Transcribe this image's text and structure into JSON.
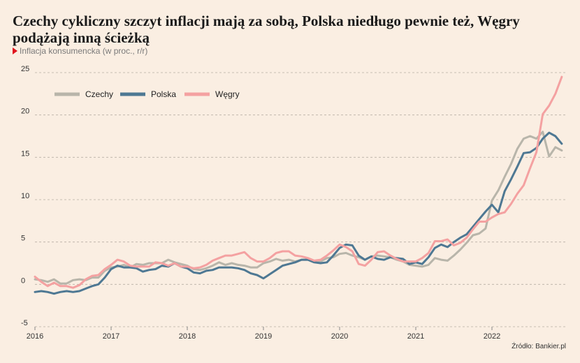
{
  "header": {
    "title": "Czechy cykliczny szczyt inflacji mają za sobą, Polska niedługo pewnie też, Węgry podążają inną ścieżką",
    "subtitle": "Inflacja konsumencka (w proc., r/r)"
  },
  "footer": {
    "source": "Źródło: Bankier.pl"
  },
  "chart_data": {
    "type": "line",
    "title": "Czechy cykliczny szczyt inflacji mają za sobą, Polska niedługo pewnie też, Węgry podążają inną ścieżką",
    "subtitle": "Inflacja konsumencka (w proc., r/r)",
    "xlabel": "",
    "ylabel": "",
    "ylim": [
      -5,
      25
    ],
    "yticks": [
      "-5",
      "0",
      "5",
      "10",
      "15",
      "20",
      "25"
    ],
    "xticks": [
      "2016",
      "2017",
      "2018",
      "2019",
      "2020",
      "2021",
      "2022"
    ],
    "grid": "horizontal dashed",
    "legend_position": "top-left",
    "series": [
      {
        "name": "Czechy",
        "color": "#b8b5aa",
        "values": [
          0.6,
          0.5,
          0.3,
          0.6,
          0.1,
          0.1,
          0.5,
          0.6,
          0.5,
          0.8,
          0.8,
          1.6,
          2.0,
          2.1,
          2.3,
          2.0,
          2.4,
          2.3,
          2.5,
          2.5,
          2.5,
          2.9,
          2.6,
          2.4,
          2.2,
          1.8,
          1.7,
          1.9,
          2.2,
          2.6,
          2.3,
          2.5,
          2.3,
          2.2,
          2.0,
          2.0,
          2.5,
          2.7,
          3.0,
          2.8,
          2.9,
          2.7,
          2.9,
          2.9,
          2.7,
          2.7,
          3.1,
          3.2,
          3.6,
          3.7,
          3.4,
          3.2,
          2.9,
          3.3,
          3.4,
          3.3,
          3.2,
          2.9,
          2.7,
          2.3,
          2.2,
          2.1,
          2.3,
          3.1,
          2.9,
          2.8,
          3.4,
          4.1,
          4.9,
          5.8,
          6.0,
          6.6,
          9.9,
          11.1,
          12.7,
          14.2,
          16.0,
          17.2,
          17.5,
          17.2,
          18.0,
          15.1,
          16.2,
          15.8
        ]
      },
      {
        "name": "Polska",
        "color": "#4e7893",
        "values": [
          -0.9,
          -0.8,
          -0.9,
          -1.1,
          -0.9,
          -0.8,
          -0.9,
          -0.8,
          -0.5,
          -0.2,
          0.0,
          0.8,
          1.8,
          2.2,
          2.0,
          2.0,
          1.9,
          1.5,
          1.7,
          1.8,
          2.2,
          2.1,
          2.5,
          2.1,
          1.9,
          1.4,
          1.3,
          1.6,
          1.7,
          2.0,
          2.0,
          2.0,
          1.9,
          1.7,
          1.3,
          1.1,
          0.7,
          1.2,
          1.7,
          2.2,
          2.4,
          2.6,
          2.9,
          2.9,
          2.6,
          2.5,
          2.6,
          3.4,
          4.3,
          4.7,
          4.6,
          3.4,
          2.9,
          3.3,
          3.0,
          2.9,
          3.2,
          3.1,
          3.0,
          2.4,
          2.6,
          2.4,
          3.2,
          4.3,
          4.7,
          4.4,
          5.0,
          5.5,
          5.9,
          6.8,
          7.7,
          8.6,
          9.4,
          8.5,
          11.0,
          12.4,
          13.9,
          15.5,
          15.6,
          16.1,
          17.2,
          17.9,
          17.5,
          16.6
        ]
      },
      {
        "name": "Węgry",
        "color": "#f4a1a1",
        "values": [
          0.9,
          0.3,
          -0.2,
          0.2,
          -0.2,
          -0.2,
          -0.4,
          -0.1,
          0.6,
          1.0,
          1.1,
          1.8,
          2.3,
          2.9,
          2.7,
          2.2,
          2.1,
          2.1,
          2.1,
          2.6,
          2.5,
          2.2,
          2.5,
          2.1,
          2.1,
          1.9,
          2.0,
          2.3,
          2.8,
          3.1,
          3.4,
          3.4,
          3.6,
          3.8,
          3.1,
          2.7,
          2.7,
          3.1,
          3.7,
          3.9,
          3.9,
          3.4,
          3.3,
          3.1,
          2.8,
          2.9,
          3.4,
          4.0,
          4.7,
          4.4,
          3.9,
          2.4,
          2.2,
          2.9,
          3.8,
          3.9,
          3.4,
          3.0,
          2.7,
          2.7,
          2.7,
          3.1,
          3.7,
          5.1,
          5.1,
          5.3,
          4.6,
          4.9,
          5.5,
          6.5,
          7.4,
          7.4,
          7.9,
          8.3,
          8.5,
          9.5,
          10.7,
          11.7,
          13.7,
          15.6,
          20.1,
          21.1,
          22.5,
          24.5
        ]
      }
    ]
  }
}
